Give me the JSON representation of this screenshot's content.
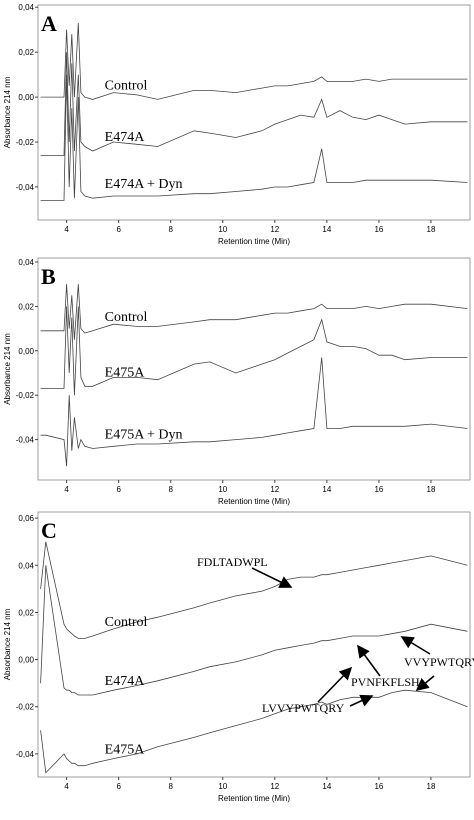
{
  "chart_data": [
    {
      "type": "line",
      "panel": "A",
      "y_label": "Absorbance 214 nm",
      "x_label": "Retention time (Min)",
      "xlim": [
        2.9,
        19.5
      ],
      "xticks": [
        4,
        6,
        8,
        10,
        12,
        14,
        16,
        18
      ],
      "ylim": [
        -0.0547,
        0.041
      ],
      "yticks": [
        {
          "value": -0.04,
          "label": "-0,04"
        },
        {
          "value": -0.02,
          "label": "-0,02"
        },
        {
          "value": 0,
          "label": "0,00"
        },
        {
          "value": 0.02,
          "label": "0,02"
        },
        {
          "value": 0.04,
          "label": "0,04"
        }
      ],
      "x": [
        3,
        3.2,
        3.9,
        4.0,
        4.1,
        4.2,
        4.3,
        4.45,
        4.55,
        4.7,
        5,
        5.8,
        6.7,
        7.5,
        8.9,
        9.5,
        10.5,
        11.5,
        12,
        12.5,
        13,
        13.5,
        13.8,
        14,
        14.5,
        15,
        15.5,
        16,
        16.5,
        17,
        18,
        19.4
      ],
      "series": [
        {
          "name": "Control",
          "color": "#444444",
          "values": [
            0,
            0,
            0,
            0.03,
            0.005,
            0.028,
            0,
            0.033,
            0.002,
            0,
            -0.001,
            0.002,
            0.001,
            -0.001,
            0.003,
            0.003,
            0.002,
            0.004,
            0.005,
            0.005,
            0.006,
            0.007,
            0.009,
            0.007,
            0.007,
            0.007,
            0.008,
            0.007,
            0.008,
            0.008,
            0.008,
            0.008
          ]
        },
        {
          "name": "E474A",
          "color": "#444444",
          "values": [
            -0.026,
            -0.026,
            -0.026,
            0.02,
            -0.02,
            0.015,
            -0.024,
            0.01,
            -0.02,
            -0.022,
            -0.024,
            -0.02,
            -0.021,
            -0.022,
            -0.015,
            -0.016,
            -0.018,
            -0.015,
            -0.012,
            -0.01,
            -0.008,
            -0.009,
            -0.001,
            -0.009,
            -0.006,
            -0.009,
            -0.01,
            -0.008,
            -0.01,
            -0.012,
            -0.011,
            -0.011
          ]
        },
        {
          "name": "E474A + Dyn",
          "color": "#444444",
          "values": [
            -0.046,
            -0.046,
            -0.046,
            0.01,
            -0.04,
            -0.005,
            -0.045,
            0,
            -0.042,
            -0.044,
            -0.045,
            -0.044,
            -0.044,
            -0.044,
            -0.043,
            -0.043,
            -0.042,
            -0.041,
            -0.04,
            -0.04,
            -0.039,
            -0.038,
            -0.023,
            -0.038,
            -0.038,
            -0.038,
            -0.037,
            -0.037,
            -0.037,
            -0.037,
            -0.037,
            -0.038
          ]
        }
      ]
    },
    {
      "type": "line",
      "panel": "B",
      "y_label": "Absorbance 214 nm",
      "x_label": "Retention time (Min)",
      "xlim": [
        2.9,
        19.5
      ],
      "xticks": [
        4,
        6,
        8,
        10,
        12,
        14,
        16,
        18
      ],
      "ylim": [
        -0.0582,
        0.0418
      ],
      "yticks": [
        {
          "value": -0.04,
          "label": "-0,04"
        },
        {
          "value": -0.02,
          "label": "-0,02"
        },
        {
          "value": 0,
          "label": "0,00"
        },
        {
          "value": 0.02,
          "label": "0,02"
        },
        {
          "value": 0.04,
          "label": "0,04"
        }
      ],
      "x": [
        3,
        3.2,
        3.9,
        4.0,
        4.1,
        4.2,
        4.3,
        4.45,
        4.55,
        4.7,
        5,
        5.8,
        6.7,
        7.5,
        8.9,
        9.5,
        10.5,
        11.5,
        12,
        12.5,
        13,
        13.5,
        13.8,
        14,
        14.5,
        15,
        15.5,
        16,
        16.5,
        17,
        18,
        19.4
      ],
      "series": [
        {
          "name": "Control",
          "color": "#444444",
          "values": [
            0.009,
            0.009,
            0.009,
            0.03,
            0.01,
            0.025,
            0.005,
            0.03,
            0.01,
            0.008,
            0.009,
            0.012,
            0.011,
            0.011,
            0.013,
            0.014,
            0.014,
            0.016,
            0.017,
            0.017,
            0.018,
            0.019,
            0.021,
            0.019,
            0.019,
            0.019,
            0.02,
            0.019,
            0.02,
            0.021,
            0.021,
            0.019
          ]
        },
        {
          "name": "E475A",
          "color": "#444444",
          "values": [
            -0.017,
            -0.017,
            -0.017,
            0.02,
            -0.01,
            0.015,
            -0.02,
            0.02,
            -0.012,
            -0.016,
            -0.016,
            -0.012,
            -0.012,
            -0.013,
            -0.006,
            -0.005,
            -0.01,
            -0.006,
            -0.004,
            -0.001,
            0.002,
            0.005,
            0.014,
            0.004,
            0.002,
            0.002,
            0.001,
            -0.002,
            -0.002,
            -0.004,
            -0.003,
            -0.003
          ]
        },
        {
          "name": "E475A + Dyn",
          "color": "#444444",
          "values": [
            -0.038,
            -0.038,
            -0.04,
            -0.052,
            -0.02,
            -0.045,
            -0.03,
            -0.044,
            -0.04,
            -0.043,
            -0.044,
            -0.043,
            -0.042,
            -0.042,
            -0.041,
            -0.041,
            -0.04,
            -0.039,
            -0.038,
            -0.037,
            -0.036,
            -0.035,
            -0.003,
            -0.035,
            -0.035,
            -0.034,
            -0.034,
            -0.034,
            -0.034,
            -0.034,
            -0.033,
            -0.035
          ]
        }
      ]
    },
    {
      "type": "line",
      "panel": "C",
      "y_label": "Absorbance 214 nm",
      "x_label": "Retention time (Min)",
      "xlim": [
        2.9,
        19.5
      ],
      "xticks": [
        4,
        6,
        8,
        10,
        12,
        14,
        16,
        18
      ],
      "ylim": [
        -0.0498,
        0.0626
      ],
      "yticks": [
        {
          "value": -0.04,
          "label": "-0,04"
        },
        {
          "value": -0.02,
          "label": "-0,02"
        },
        {
          "value": 0,
          "label": "0,00"
        },
        {
          "value": 0.02,
          "label": "0,02"
        },
        {
          "value": 0.04,
          "label": "0,04"
        },
        {
          "value": 0.06,
          "label": "0,06"
        }
      ],
      "x": [
        3,
        3.2,
        3.9,
        4.0,
        4.1,
        4.2,
        4.3,
        4.45,
        4.55,
        4.7,
        5,
        5.8,
        6.7,
        7.5,
        8.9,
        9.5,
        10.5,
        11.5,
        12,
        12.5,
        13,
        13.5,
        13.8,
        14,
        14.5,
        15,
        15.5,
        16,
        16.5,
        17,
        18,
        19.4
      ],
      "series": [
        {
          "name": "Control",
          "color": "#444444",
          "values": [
            0.03,
            0.05,
            0.015,
            0.013,
            0.012,
            0.011,
            0.01,
            0.009,
            0.009,
            0.009,
            0.01,
            0.013,
            0.016,
            0.018,
            0.022,
            0.024,
            0.027,
            0.029,
            0.031,
            0.034,
            0.035,
            0.035,
            0.036,
            0.036,
            0.037,
            0.038,
            0.039,
            0.04,
            0.041,
            0.042,
            0.044,
            0.04
          ]
        },
        {
          "name": "E474A",
          "color": "#444444",
          "values": [
            -0.01,
            0.04,
            -0.012,
            -0.013,
            -0.013,
            -0.014,
            -0.014,
            -0.015,
            -0.015,
            -0.015,
            -0.015,
            -0.013,
            -0.011,
            -0.009,
            -0.005,
            -0.003,
            -0.001,
            0.002,
            0.004,
            0.005,
            0.006,
            0.007,
            0.008,
            0.008,
            0.009,
            0.01,
            0.01,
            0.01,
            0.011,
            0.012,
            0.015,
            0.012
          ]
        },
        {
          "name": "E475A",
          "color": "#444444",
          "values": [
            -0.03,
            -0.048,
            -0.04,
            -0.042,
            -0.043,
            -0.044,
            -0.044,
            -0.045,
            -0.045,
            -0.045,
            -0.044,
            -0.042,
            -0.04,
            -0.037,
            -0.033,
            -0.031,
            -0.028,
            -0.025,
            -0.023,
            -0.021,
            -0.02,
            -0.019,
            -0.018,
            -0.019,
            -0.017,
            -0.016,
            -0.016,
            -0.016,
            -0.014,
            -0.013,
            -0.014,
            -0.02
          ]
        }
      ],
      "annotations": [
        "FDLTADWPL",
        "LVVYPWTQRY",
        "PVNFKFLSH",
        "VVYPWTQRY"
      ]
    }
  ]
}
